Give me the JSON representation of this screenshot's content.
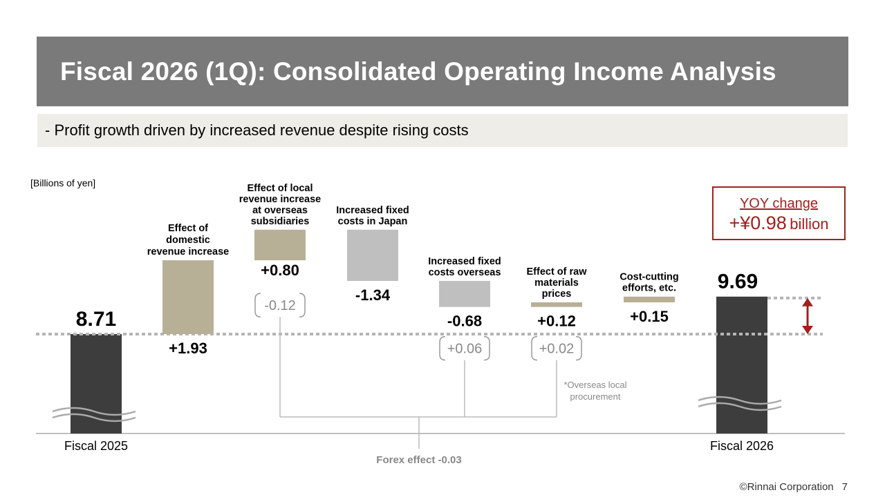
{
  "header": {
    "title": "Fiscal 2026 (1Q): Consolidated Operating Income Analysis",
    "subtitle": "- Profit growth driven by increased revenue despite rising costs"
  },
  "units_label": "[Billions of yen]",
  "yoy": {
    "label": "YOY change",
    "value": "+¥0.98",
    "unit": "billion"
  },
  "footer": {
    "copyright": "©Rinnai Corporation",
    "page": "7"
  },
  "colors": {
    "title_bg": "#7a7a7a",
    "subtitle_bg": "#eeede8",
    "total": "#3d3d3d",
    "increase": "#b7b096",
    "decrease": "#bfbfbf",
    "accent": "#a31f1f",
    "bracket": "#999999"
  },
  "chart_data": {
    "type": "bar",
    "subtype": "waterfall",
    "unit": "Billions of yen",
    "start": {
      "category": "Fiscal 2025",
      "value": 8.71,
      "label": "8.71"
    },
    "end": {
      "category": "Fiscal 2026",
      "value": 9.69,
      "label": "9.69"
    },
    "steps": [
      {
        "category": "Effect of domestic revenue increase",
        "value": 1.93,
        "label": "+1.93",
        "type": "increase"
      },
      {
        "category": "Effect of local revenue increase at overseas subsidiaries",
        "value": 0.8,
        "label": "+0.80",
        "type": "increase",
        "forex": -0.12,
        "forex_label": "-0.12"
      },
      {
        "category": "Increased fixed costs in Japan",
        "value": -1.34,
        "label": "-1.34",
        "type": "decrease"
      },
      {
        "category": "Increased fixed costs overseas",
        "value": -0.68,
        "label": "-0.68",
        "type": "decrease",
        "forex": 0.06,
        "forex_label": "+0.06"
      },
      {
        "category": "Effect of raw materials prices",
        "value": 0.12,
        "label": "+0.12",
        "type": "increase",
        "forex": 0.02,
        "forex_label": "+0.02"
      },
      {
        "category": "Cost-cutting efforts, etc.",
        "value": 0.15,
        "label": "+0.15",
        "type": "increase"
      }
    ],
    "forex_total_label": "Forex effect -0.03",
    "footnote": "*Overseas local procurement",
    "broken_axis": true
  }
}
